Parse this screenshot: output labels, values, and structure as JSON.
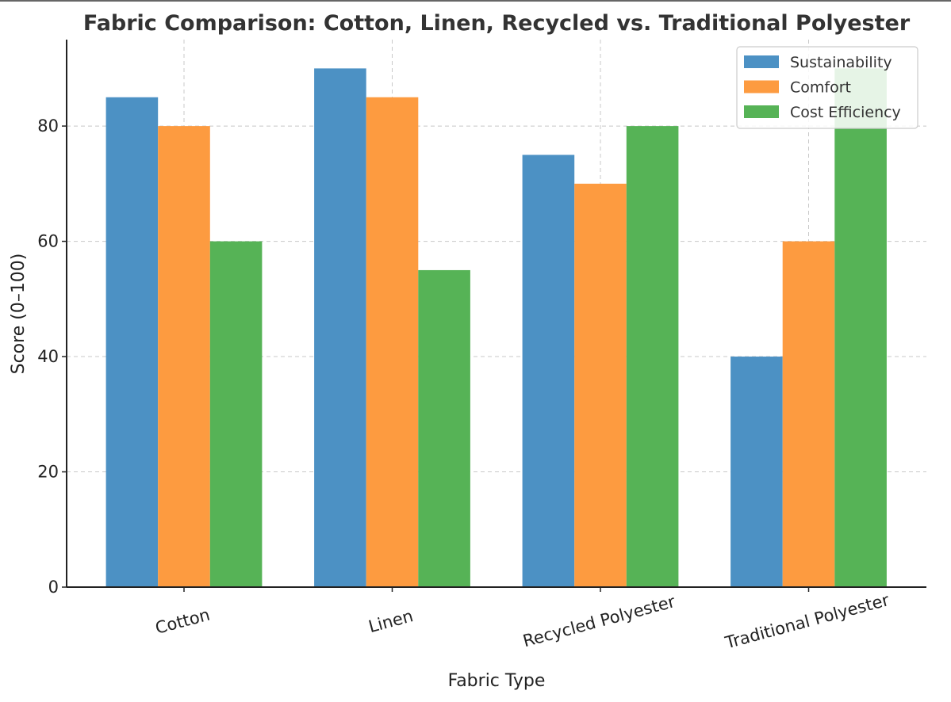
{
  "chart_data": {
    "type": "bar",
    "title": "Fabric Comparison: Cotton, Linen, Recycled vs. Traditional Polyester",
    "xlabel": "Fabric Type",
    "ylabel": "Score (0–100)",
    "categories": [
      "Cotton",
      "Linen",
      "Recycled Polyester",
      "Traditional Polyester"
    ],
    "series": [
      {
        "name": "Sustainability",
        "color": "#4c91c4",
        "values": [
          85,
          90,
          75,
          40
        ]
      },
      {
        "name": "Comfort",
        "color": "#fd9b40",
        "values": [
          80,
          85,
          70,
          60
        ]
      },
      {
        "name": "Cost Efficiency",
        "color": "#56b356",
        "values": [
          60,
          55,
          80,
          90
        ]
      }
    ],
    "ylim": [
      0,
      95
    ],
    "yticks": [
      0,
      20,
      40,
      60,
      80
    ],
    "grid": true,
    "legend_position": "top-right"
  }
}
